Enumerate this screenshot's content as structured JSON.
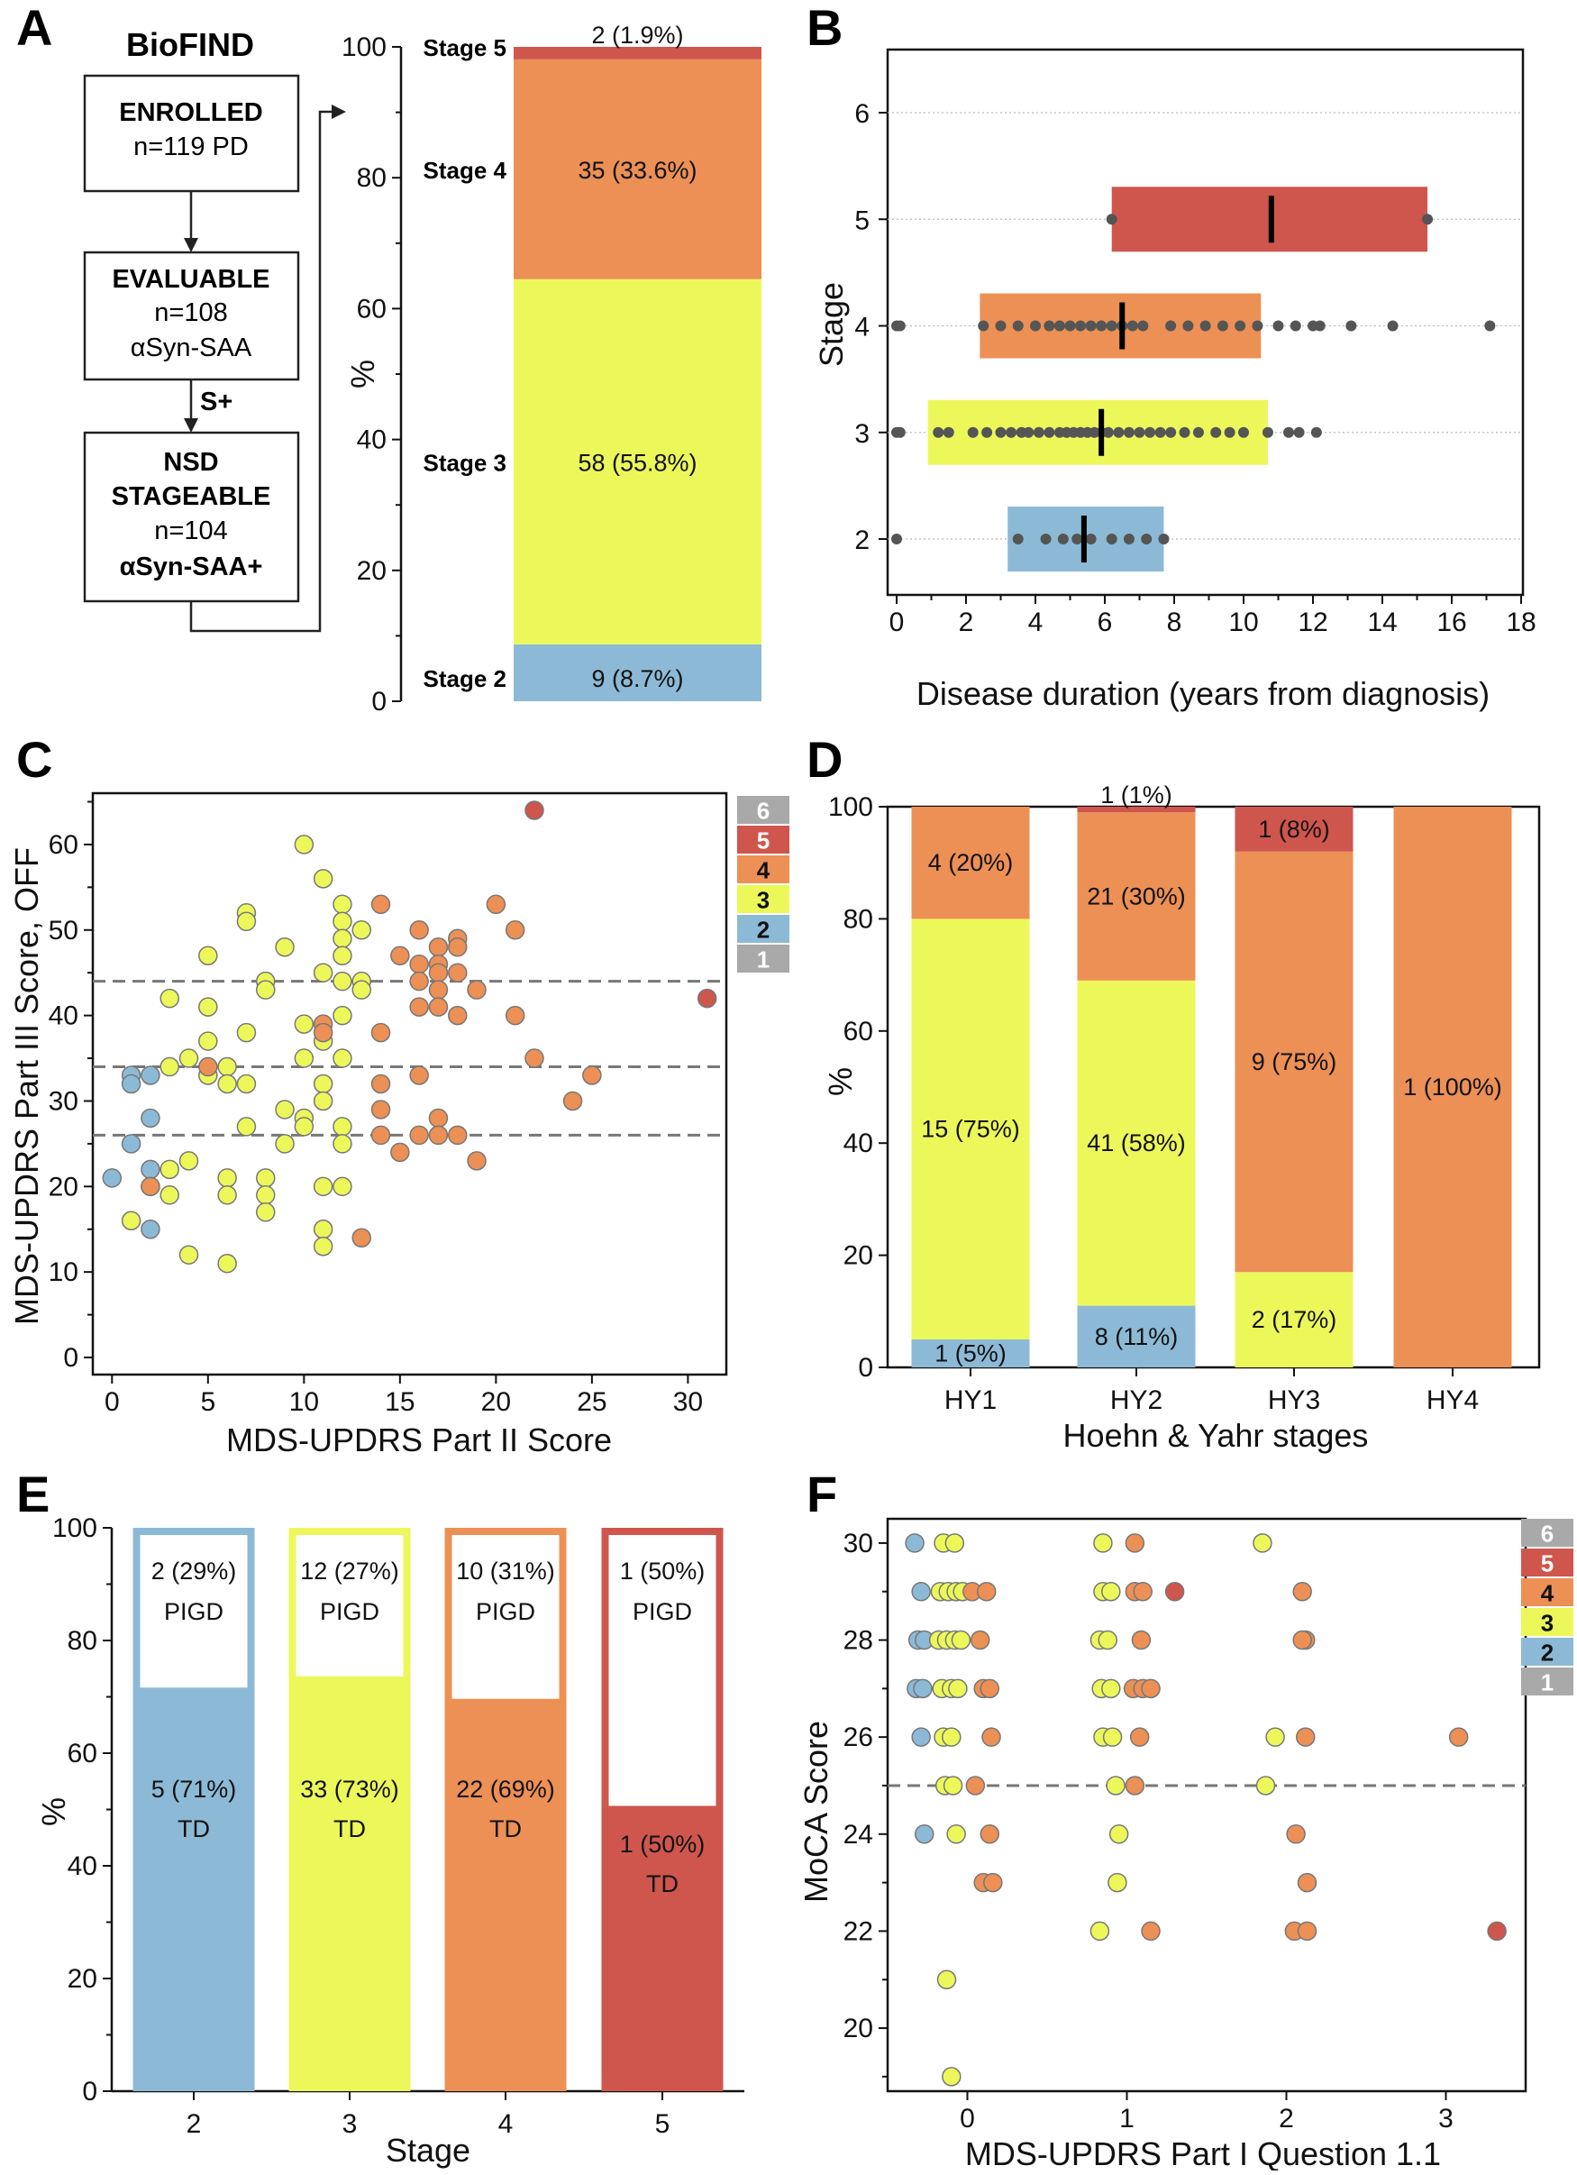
{
  "colors": {
    "s1": "#a9a9a9",
    "s2": "#8cbad6",
    "s3": "#ecf85a",
    "s4": "#ec9055",
    "s5": "#cf564d",
    "s6": "#a9a9a9",
    "dot": "#555555"
  },
  "panels": [
    "A",
    "B",
    "C",
    "D",
    "E",
    "F"
  ],
  "flow": {
    "title": "BioFIND",
    "box1": [
      "ENROLLED",
      "n=119 PD"
    ],
    "box2": [
      "EVALUABLE",
      "n=108",
      "αSyn-SAA"
    ],
    "arrow_label": "S+",
    "box3": [
      "NSD",
      "STAGEABLE",
      "n=104",
      "αSyn-SAA+"
    ]
  },
  "legend_stages": [
    "6",
    "5",
    "4",
    "3",
    "2",
    "1"
  ],
  "chart_data": [
    {
      "id": "A",
      "type": "bar",
      "ylabel": "%",
      "ylim": [
        0,
        100
      ],
      "yticks": [
        0,
        20,
        40,
        60,
        80,
        100
      ],
      "segments": [
        {
          "stage": 2,
          "name": "Stage 2",
          "value": 8.7,
          "label": "9 (8.7%)"
        },
        {
          "stage": 3,
          "name": "Stage 3",
          "value": 55.8,
          "label": "58 (55.8%)"
        },
        {
          "stage": 4,
          "name": "Stage 4",
          "value": 33.6,
          "label": "35 (33.6%)"
        },
        {
          "stage": 5,
          "name": "Stage 5",
          "value": 1.9,
          "label": "2 (1.9%)"
        }
      ]
    },
    {
      "id": "B",
      "type": "box",
      "xlabel": "Disease duration (years from diagnosis)",
      "ylabel": "Stage",
      "xlim": [
        0,
        18
      ],
      "xticks": [
        0,
        2,
        4,
        6,
        8,
        10,
        12,
        14,
        16,
        18
      ],
      "yticks": [
        2,
        3,
        4,
        5,
        6
      ],
      "boxes": [
        {
          "stage": 2,
          "q1": 3.2,
          "median": 5.4,
          "q3": 7.7,
          "points": [
            0,
            3.5,
            4.3,
            4.8,
            5.2,
            5.6,
            6.2,
            6.7,
            7.2,
            7.7
          ]
        },
        {
          "stage": 3,
          "q1": 0.9,
          "median": 5.9,
          "q3": 10.7,
          "points": [
            0,
            0.1,
            1.2,
            1.5,
            2.2,
            2.6,
            3.0,
            3.3,
            3.6,
            3.8,
            4.1,
            4.4,
            4.7,
            4.9,
            5.1,
            5.3,
            5.5,
            5.7,
            5.9,
            6.1,
            6.4,
            6.7,
            7.0,
            7.3,
            7.6,
            7.9,
            8.3,
            8.7,
            9.2,
            9.6,
            10.0,
            10.7,
            11.3,
            11.6,
            12.1
          ]
        },
        {
          "stage": 4,
          "q1": 2.4,
          "median": 6.5,
          "q3": 10.5,
          "points": [
            0,
            0.1,
            2.5,
            3.0,
            3.5,
            4.0,
            4.4,
            4.7,
            5.0,
            5.3,
            5.6,
            5.9,
            6.2,
            6.5,
            6.8,
            7.1,
            7.9,
            8.4,
            8.9,
            9.4,
            9.9,
            10.4,
            11.0,
            11.5,
            12.0,
            12.2,
            13.1,
            14.3,
            17.1
          ]
        },
        {
          "stage": 5,
          "q1": 6.2,
          "median": 10.8,
          "q3": 15.3,
          "points": [
            6.2,
            15.3
          ]
        }
      ]
    },
    {
      "id": "C",
      "type": "scatter",
      "xlabel": "MDS-UPDRS Part II Score",
      "ylabel": "MDS-UPDRS Part III Score, OFF",
      "xlim": [
        -1,
        32
      ],
      "ylim": [
        -2,
        66
      ],
      "xticks": [
        0,
        5,
        10,
        15,
        20,
        25,
        30
      ],
      "yticks": [
        0,
        10,
        20,
        30,
        40,
        50,
        60
      ],
      "thresholds": [
        26,
        34,
        44
      ],
      "points": [
        [
          0,
          21,
          2
        ],
        [
          1,
          33,
          2
        ],
        [
          1,
          32,
          2
        ],
        [
          2,
          33,
          2
        ],
        [
          1,
          25,
          2
        ],
        [
          2,
          28,
          2
        ],
        [
          2,
          22,
          2
        ],
        [
          2,
          15,
          2
        ],
        [
          1,
          16,
          3
        ],
        [
          2,
          20,
          3
        ],
        [
          3,
          22,
          3
        ],
        [
          3,
          19,
          3
        ],
        [
          3,
          34,
          3
        ],
        [
          3,
          42,
          3
        ],
        [
          4,
          35,
          3
        ],
        [
          4,
          23,
          3
        ],
        [
          4,
          12,
          3
        ],
        [
          5,
          47,
          3
        ],
        [
          5,
          41,
          3
        ],
        [
          5,
          37,
          3
        ],
        [
          5,
          33,
          3
        ],
        [
          6,
          34,
          3
        ],
        [
          6,
          32,
          3
        ],
        [
          6,
          21,
          3
        ],
        [
          6,
          19,
          3
        ],
        [
          6,
          11,
          3
        ],
        [
          7,
          52,
          3
        ],
        [
          7,
          51,
          3
        ],
        [
          7,
          38,
          3
        ],
        [
          7,
          32,
          3
        ],
        [
          7,
          27,
          3
        ],
        [
          8,
          44,
          3
        ],
        [
          8,
          43,
          3
        ],
        [
          8,
          21,
          3
        ],
        [
          8,
          19,
          3
        ],
        [
          8,
          17,
          3
        ],
        [
          9,
          48,
          3
        ],
        [
          9,
          29,
          3
        ],
        [
          9,
          25,
          3
        ],
        [
          10,
          60,
          3
        ],
        [
          10,
          39,
          3
        ],
        [
          10,
          35,
          3
        ],
        [
          10,
          28,
          3
        ],
        [
          10,
          27,
          3
        ],
        [
          11,
          56,
          3
        ],
        [
          11,
          45,
          3
        ],
        [
          11,
          37,
          3
        ],
        [
          11,
          32,
          3
        ],
        [
          11,
          30,
          3
        ],
        [
          11,
          20,
          3
        ],
        [
          11,
          15,
          3
        ],
        [
          11,
          13,
          3
        ],
        [
          12,
          53,
          3
        ],
        [
          12,
          51,
          3
        ],
        [
          12,
          49,
          3
        ],
        [
          12,
          47,
          3
        ],
        [
          12,
          44,
          3
        ],
        [
          12,
          40,
          3
        ],
        [
          12,
          35,
          3
        ],
        [
          12,
          27,
          3
        ],
        [
          12,
          25,
          3
        ],
        [
          12,
          20,
          3
        ],
        [
          13,
          50,
          3
        ],
        [
          13,
          44,
          3
        ],
        [
          13,
          43,
          3
        ],
        [
          5,
          34,
          4
        ],
        [
          2,
          20,
          4
        ],
        [
          11,
          39,
          4
        ],
        [
          11,
          38,
          4
        ],
        [
          13,
          14,
          4
        ],
        [
          14,
          53,
          4
        ],
        [
          14,
          38,
          4
        ],
        [
          14,
          32,
          4
        ],
        [
          14,
          29,
          4
        ],
        [
          14,
          26,
          4
        ],
        [
          15,
          47,
          4
        ],
        [
          15,
          24,
          4
        ],
        [
          16,
          50,
          4
        ],
        [
          16,
          46,
          4
        ],
        [
          16,
          44,
          4
        ],
        [
          16,
          41,
          4
        ],
        [
          16,
          33,
          4
        ],
        [
          16,
          26,
          4
        ],
        [
          17,
          48,
          4
        ],
        [
          17,
          46,
          4
        ],
        [
          17,
          45,
          4
        ],
        [
          17,
          43,
          4
        ],
        [
          17,
          41,
          4
        ],
        [
          17,
          28,
          4
        ],
        [
          17,
          26,
          4
        ],
        [
          18,
          49,
          4
        ],
        [
          18,
          48,
          4
        ],
        [
          18,
          45,
          4
        ],
        [
          18,
          40,
          4
        ],
        [
          18,
          26,
          4
        ],
        [
          19,
          43,
          4
        ],
        [
          19,
          23,
          4
        ],
        [
          20,
          53,
          4
        ],
        [
          21,
          50,
          4
        ],
        [
          21,
          40,
          4
        ],
        [
          22,
          35,
          4
        ],
        [
          24,
          30,
          4
        ],
        [
          25,
          33,
          4
        ],
        [
          22,
          64,
          5
        ],
        [
          31,
          42,
          5
        ]
      ]
    },
    {
      "id": "D",
      "type": "bar",
      "xlabel": "Hoehn & Yahr stages",
      "ylabel": "%",
      "ylim": [
        0,
        100
      ],
      "yticks": [
        0,
        20,
        40,
        60,
        80,
        100
      ],
      "categories": [
        "HY1",
        "HY2",
        "HY3",
        "HY4"
      ],
      "stacks": [
        [
          {
            "stage": 2,
            "value": 5,
            "label": "1 (5%)"
          },
          {
            "stage": 3,
            "value": 75,
            "label": "15 (75%)"
          },
          {
            "stage": 4,
            "value": 20,
            "label": "4 (20%)"
          }
        ],
        [
          {
            "stage": 2,
            "value": 11,
            "label": "8 (11%)"
          },
          {
            "stage": 3,
            "value": 58,
            "label": "41 (58%)"
          },
          {
            "stage": 4,
            "value": 30,
            "label": "21 (30%)"
          },
          {
            "stage": 5,
            "value": 1,
            "label": "1 (1%)"
          }
        ],
        [
          {
            "stage": 3,
            "value": 17,
            "label": "2 (17%)"
          },
          {
            "stage": 4,
            "value": 75,
            "label": "9 (75%)"
          },
          {
            "stage": 5,
            "value": 8,
            "label": "1 (8%)"
          }
        ],
        [
          {
            "stage": 4,
            "value": 100,
            "label": "1 (100%)"
          }
        ]
      ]
    },
    {
      "id": "E",
      "type": "bar",
      "xlabel": "Stage",
      "ylabel": "%",
      "ylim": [
        0,
        100
      ],
      "yticks": [
        0,
        20,
        40,
        60,
        80,
        100
      ],
      "categories": [
        "2",
        "3",
        "4",
        "5"
      ],
      "bars": [
        {
          "stage": 2,
          "td": 71,
          "td_label": "5 (71%)",
          "pigd_label": "2 (29%)"
        },
        {
          "stage": 3,
          "td": 73,
          "td_label": "33 (73%)",
          "pigd_label": "12 (27%)"
        },
        {
          "stage": 4,
          "td": 69,
          "td_label": "22 (69%)",
          "pigd_label": "10 (31%)"
        },
        {
          "stage": 5,
          "td": 50,
          "td_label": "1 (50%)",
          "pigd_label": "1 (50%)"
        }
      ],
      "td_text": "TD",
      "pigd_text": "PIGD"
    },
    {
      "id": "F",
      "type": "scatter",
      "xlabel": "MDS-UPDRS Part I Question 1.1",
      "ylabel": "MoCA Score",
      "xlim": [
        -0.5,
        3.5
      ],
      "ylim": [
        18.7,
        30.5
      ],
      "xticks": [
        0,
        1,
        2,
        3
      ],
      "yticks": [
        20,
        22,
        24,
        26,
        28,
        30
      ],
      "threshold": 25,
      "points": [
        [
          -0.33,
          30,
          2
        ],
        [
          -0.29,
          29,
          2
        ],
        [
          -0.31,
          28,
          2
        ],
        [
          -0.27,
          28,
          2
        ],
        [
          -0.32,
          27,
          2
        ],
        [
          -0.28,
          27,
          2
        ],
        [
          -0.29,
          26,
          2
        ],
        [
          -0.27,
          24,
          2
        ],
        [
          -0.15,
          30,
          3
        ],
        [
          -0.08,
          30,
          3
        ],
        [
          -0.17,
          29,
          3
        ],
        [
          -0.12,
          29,
          3
        ],
        [
          -0.07,
          29,
          3
        ],
        [
          -0.03,
          29,
          3
        ],
        [
          -0.18,
          28,
          3
        ],
        [
          -0.13,
          28,
          3
        ],
        [
          -0.08,
          28,
          3
        ],
        [
          -0.04,
          28,
          3
        ],
        [
          -0.16,
          27,
          3
        ],
        [
          -0.1,
          27,
          3
        ],
        [
          -0.06,
          27,
          3
        ],
        [
          -0.15,
          26,
          3
        ],
        [
          -0.1,
          26,
          3
        ],
        [
          -0.14,
          25,
          3
        ],
        [
          -0.09,
          25,
          3
        ],
        [
          -0.07,
          24,
          3
        ],
        [
          -0.13,
          21,
          3
        ],
        [
          -0.1,
          19,
          3
        ],
        [
          0.85,
          30,
          3
        ],
        [
          0.85,
          29,
          3
        ],
        [
          0.9,
          29,
          3
        ],
        [
          0.83,
          28,
          3
        ],
        [
          0.88,
          28,
          3
        ],
        [
          0.84,
          27,
          3
        ],
        [
          0.9,
          27,
          3
        ],
        [
          0.85,
          26,
          3
        ],
        [
          0.91,
          26,
          3
        ],
        [
          0.93,
          25,
          3
        ],
        [
          0.95,
          24,
          3
        ],
        [
          0.94,
          23,
          3
        ],
        [
          0.83,
          22,
          3
        ],
        [
          1.85,
          30,
          3
        ],
        [
          1.93,
          26,
          3
        ],
        [
          1.87,
          25,
          3
        ],
        [
          0.03,
          29,
          4
        ],
        [
          0.12,
          29,
          4
        ],
        [
          0.08,
          28,
          4
        ],
        [
          0.1,
          27,
          4
        ],
        [
          0.14,
          27,
          4
        ],
        [
          0.15,
          26,
          4
        ],
        [
          0.05,
          25,
          4
        ],
        [
          0.14,
          24,
          4
        ],
        [
          0.1,
          23,
          4
        ],
        [
          0.16,
          23,
          4
        ],
        [
          1.05,
          30,
          4
        ],
        [
          1.05,
          29,
          4
        ],
        [
          1.1,
          29,
          4
        ],
        [
          1.09,
          28,
          4
        ],
        [
          1.04,
          27,
          4
        ],
        [
          1.1,
          27,
          4
        ],
        [
          1.15,
          27,
          4
        ],
        [
          1.08,
          26,
          4
        ],
        [
          1.05,
          25,
          4
        ],
        [
          1.15,
          22,
          4
        ],
        [
          2.1,
          29,
          4
        ],
        [
          2.12,
          28,
          4
        ],
        [
          2.1,
          28,
          4
        ],
        [
          2.12,
          26,
          4
        ],
        [
          2.06,
          24,
          4
        ],
        [
          2.13,
          23,
          4
        ],
        [
          2.05,
          22,
          4
        ],
        [
          2.13,
          22,
          4
        ],
        [
          3.08,
          26,
          4
        ],
        [
          1.3,
          29,
          5
        ],
        [
          3.32,
          22,
          5
        ]
      ]
    }
  ]
}
